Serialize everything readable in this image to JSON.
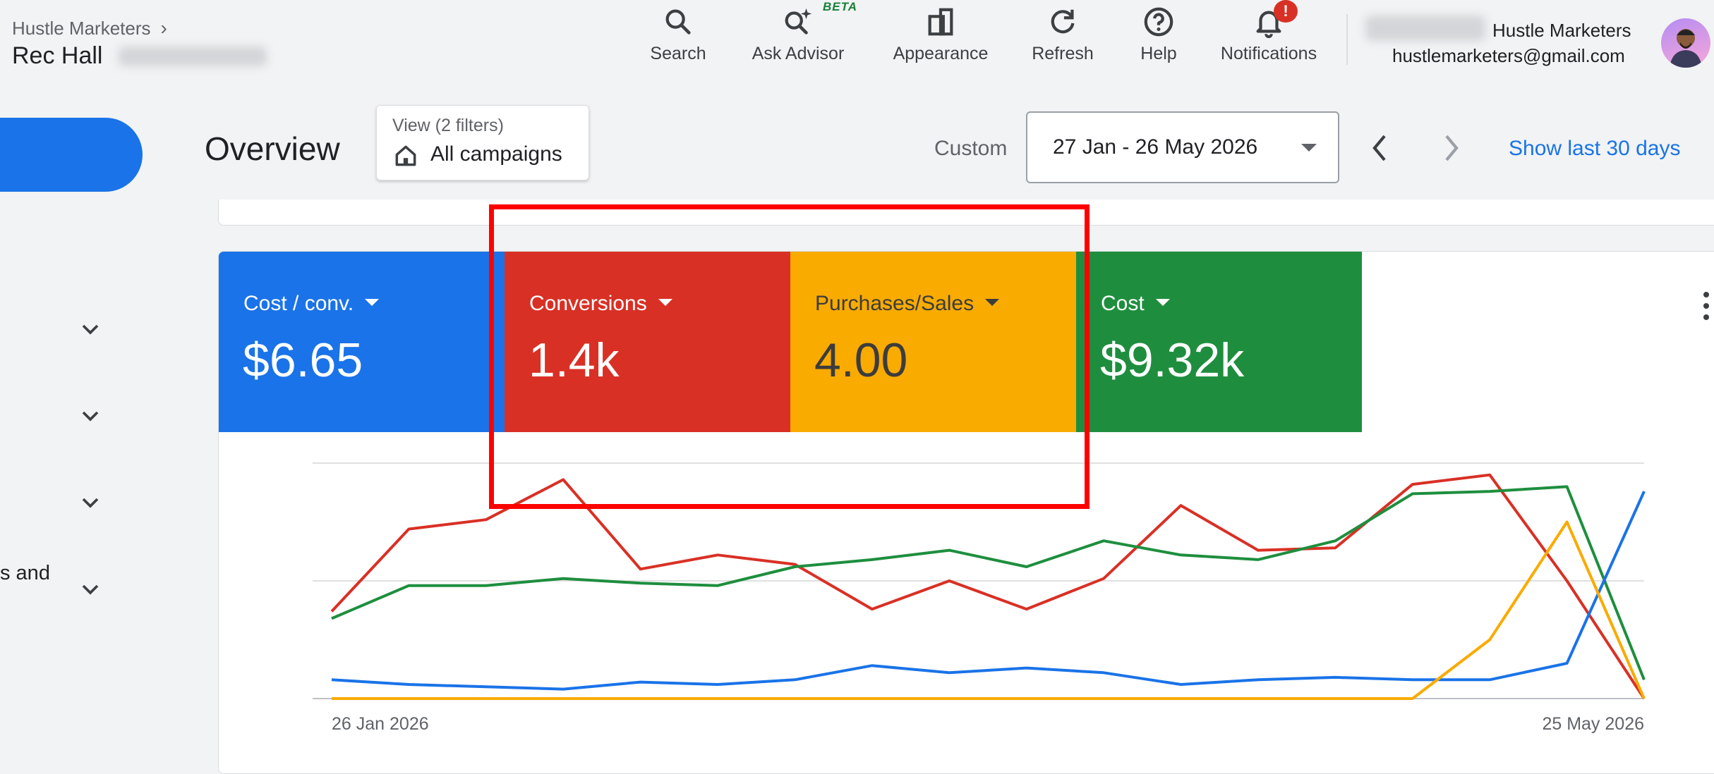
{
  "header": {
    "breadcrumb": "Hustle Marketers",
    "account_name": "Rec Hall",
    "actions": [
      {
        "label": "Search",
        "icon": "search-icon"
      },
      {
        "label": "Ask Advisor",
        "icon": "sparkle-search-icon",
        "badge": "BETA"
      },
      {
        "label": "Appearance",
        "icon": "appearance-icon"
      },
      {
        "label": "Refresh",
        "icon": "refresh-icon"
      },
      {
        "label": "Help",
        "icon": "help-icon"
      },
      {
        "label": "Notifications",
        "icon": "bell-icon",
        "badge": "!"
      }
    ],
    "user": {
      "org": "Hustle Marketers",
      "email": "hustlemarketers@gmail.com"
    }
  },
  "sidebar": {
    "partial_text": "s and"
  },
  "toolbar": {
    "title": "Overview",
    "view_label": "View (2 filters)",
    "view_value": "All campaigns",
    "date_preset": "Custom",
    "date_range": "27 Jan - 26 May 2026",
    "show_last": "Show last 30 days"
  },
  "metrics": [
    {
      "label": "Cost / conv.",
      "value": "$6.65",
      "color": "#1a73e8"
    },
    {
      "label": "Conversions",
      "value": "1.4k",
      "color": "#d93025"
    },
    {
      "label": "Purchases/Sales",
      "value": "4.00",
      "color": "#f9ab00"
    },
    {
      "label": "Cost",
      "value": "$9.32k",
      "color": "#1e8e3e"
    }
  ],
  "chart_data": {
    "type": "line",
    "x_start_label": "26 Jan 2026",
    "x_end_label": "25 May 2026",
    "grid": true,
    "scale": "normalized 0-100 per series (no y-axis labels shown)",
    "series": [
      {
        "name": "Conversions",
        "color": "#d93025",
        "values": [
          37,
          72,
          76,
          93,
          55,
          61,
          57,
          38,
          50,
          38,
          51,
          82,
          63,
          64,
          91,
          95,
          50,
          0
        ]
      },
      {
        "name": "Cost",
        "color": "#1e8e3e",
        "values": [
          34,
          48,
          48,
          51,
          49,
          48,
          56,
          59,
          63,
          56,
          67,
          61,
          59,
          67,
          87,
          88,
          90,
          8
        ]
      },
      {
        "name": "Cost / conv.",
        "color": "#1a73e8",
        "values": [
          8,
          6,
          5,
          4,
          7,
          6,
          8,
          14,
          11,
          13,
          11,
          6,
          8,
          9,
          8,
          8,
          15,
          88
        ]
      },
      {
        "name": "Purchases/Sales",
        "color": "#f9ab00",
        "values": [
          0,
          0,
          0,
          0,
          0,
          0,
          0,
          0,
          0,
          0,
          0,
          0,
          0,
          0,
          0,
          25,
          75,
          0
        ]
      }
    ]
  }
}
